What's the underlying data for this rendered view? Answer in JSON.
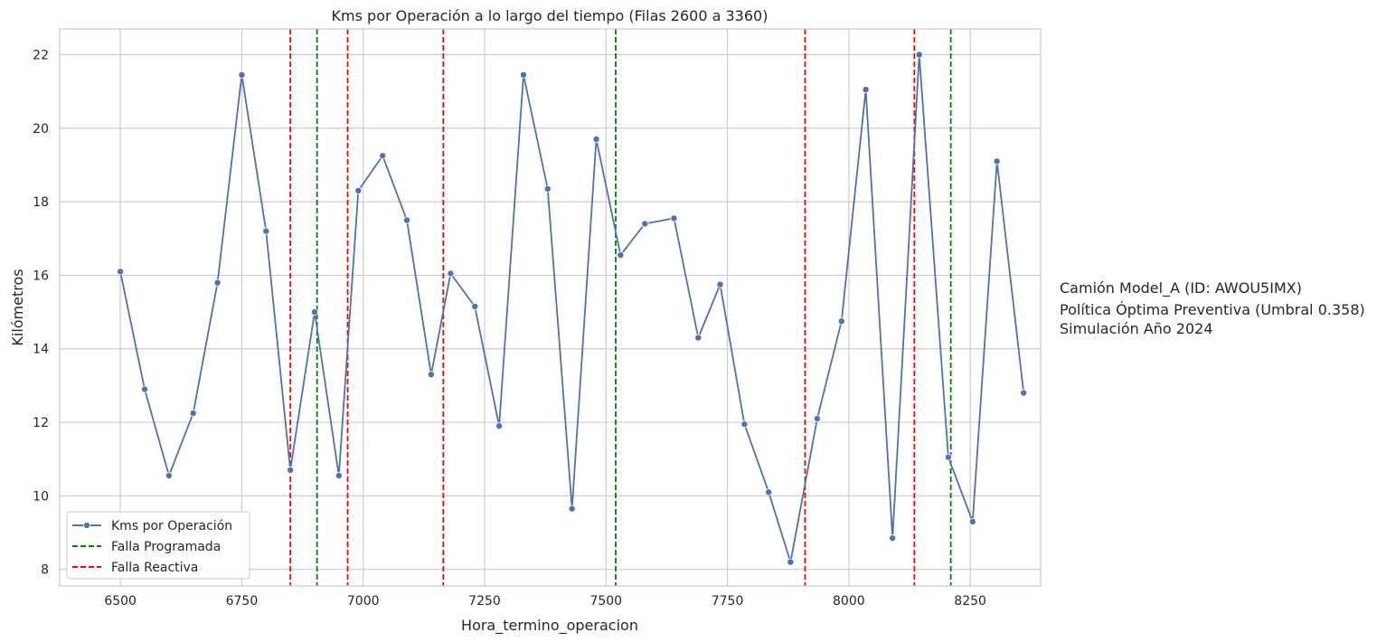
{
  "chart_data": {
    "type": "line",
    "title": "Kms por Operación a lo largo del tiempo (Filas 2600 a 3360)",
    "xlabel": "Hora_termino_operacion",
    "ylabel": "Kilómetros",
    "xlim": [
      6375,
      8395
    ],
    "ylim": [
      7.55,
      22.7
    ],
    "xticks": [
      6500,
      6750,
      7000,
      7250,
      7500,
      7750,
      8000,
      8250
    ],
    "yticks": [
      8,
      10,
      12,
      14,
      16,
      18,
      20,
      22
    ],
    "grid": true,
    "legend_position": "lower-left",
    "series": [
      {
        "name": "Kms por Operación",
        "color": "#4c72b0",
        "x": [
          6500,
          6550,
          6600,
          6650,
          6700,
          6750,
          6800,
          6850,
          6900,
          6950,
          6990,
          7040,
          7090,
          7140,
          7180,
          7230,
          7280,
          7330,
          7380,
          7430,
          7480,
          7530,
          7580,
          7640,
          7690,
          7735,
          7785,
          7835,
          7880,
          7935,
          7985,
          8035,
          8090,
          8145,
          8205,
          8255,
          8305,
          8360
        ],
        "y": [
          16.1,
          12.9,
          10.55,
          12.25,
          15.8,
          21.45,
          17.2,
          10.7,
          15.0,
          10.55,
          18.3,
          19.25,
          17.5,
          13.3,
          16.05,
          15.15,
          11.9,
          21.45,
          18.35,
          9.65,
          19.7,
          16.55,
          17.4,
          17.55,
          14.3,
          15.75,
          11.95,
          10.1,
          8.2,
          12.1,
          14.75,
          21.05,
          8.85,
          22.0,
          11.05,
          9.3,
          19.1,
          12.8
        ]
      }
    ],
    "vlines": [
      {
        "name": "Falla Programada",
        "color": "#008000",
        "x": [
          6905,
          7520,
          8210
        ]
      },
      {
        "name": "Falla Reactiva",
        "color": "#ff0000",
        "x": [
          6850,
          6968,
          7165,
          7910,
          8135
        ]
      }
    ],
    "annotation": [
      "Camión Model_A (ID: AWOU5IMX)",
      "Política Óptima Preventiva (Umbral 0.358)",
      "Simulación Año 2024"
    ]
  }
}
